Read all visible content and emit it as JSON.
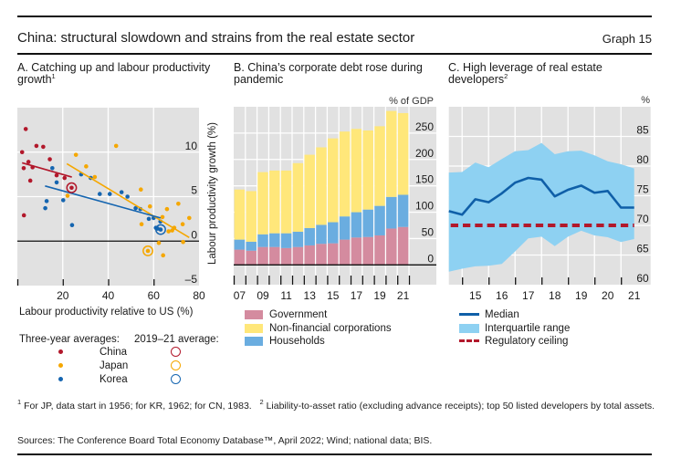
{
  "header": {
    "title": "China: structural slowdown and strains from the real estate sector",
    "graph_label": "Graph 15"
  },
  "chart_data": [
    {
      "panel": "A",
      "type": "scatter",
      "title": "A. Catching up and labour productivity growth",
      "title_footnote": "1",
      "xlabel": "Labour productivity relative to US (%)",
      "ylabel": "Labour productivity growth (%)",
      "xlim": [
        0,
        80
      ],
      "ylim": [
        -5,
        15
      ],
      "xticks": [
        20,
        40,
        60,
        80
      ],
      "xtick_labels": [
        "20",
        "40",
        "60",
        "80"
      ],
      "yticks": [
        -5,
        0,
        5,
        10
      ],
      "ytick_labels": [
        "–5",
        "0",
        "5",
        "10"
      ],
      "x_gridlines": [
        20,
        40,
        60
      ],
      "y_gridlines": [
        5,
        10
      ],
      "zero_line": 0,
      "grid": true,
      "legend": {
        "placement": "below",
        "marker_heading": "Three-year averages:",
        "highlight_heading": "2019–21 average:"
      },
      "series": [
        {
          "name": "China",
          "color": "#B2182B",
          "points": [
            [
              3.7,
              12.6
            ],
            [
              8.4,
              10.7
            ],
            [
              11.4,
              10.6
            ],
            [
              2.1,
              10.0
            ],
            [
              14.3,
              9.2
            ],
            [
              4.9,
              8.9
            ],
            [
              2.8,
              8.2
            ],
            [
              6.7,
              8.3
            ],
            [
              17.3,
              7.4
            ],
            [
              20.8,
              7.1
            ],
            [
              5.7,
              6.8
            ],
            [
              2.9,
              2.9
            ]
          ],
          "average_2019_21": [
            23.9,
            6.0
          ],
          "trend_line": [
            [
              2.1,
              8.8
            ],
            [
              24.0,
              7.2
            ]
          ]
        },
        {
          "name": "Japan",
          "color": "#F5A700",
          "points": [
            [
              25.8,
              9.7
            ],
            [
              30.3,
              8.4
            ],
            [
              34.1,
              7.2
            ],
            [
              22.1,
              5.1
            ],
            [
              43.5,
              10.7
            ],
            [
              54.4,
              5.8
            ],
            [
              58.4,
              3.9
            ],
            [
              54.7,
              1.9
            ],
            [
              63.9,
              2.7
            ],
            [
              65.9,
              3.6
            ],
            [
              70.9,
              4.2
            ],
            [
              75.7,
              2.6
            ],
            [
              72.8,
              1.9
            ],
            [
              69.1,
              1.5
            ],
            [
              68.2,
              1.2
            ],
            [
              66.6,
              1.1
            ],
            [
              73.0,
              -0.1
            ],
            [
              62.3,
              -0.2
            ],
            [
              64.2,
              -1.6
            ]
          ],
          "average_2019_21": [
            57.5,
            -1.1
          ],
          "trend_line": [
            [
              21.8,
              8.7
            ],
            [
              75.7,
              0.4
            ]
          ]
        },
        {
          "name": "Korea",
          "color": "#1565B0",
          "points": [
            [
              15.4,
              8.2
            ],
            [
              17.3,
              6.6
            ],
            [
              12.9,
              4.5
            ],
            [
              12.3,
              3.7
            ],
            [
              20.2,
              4.6
            ],
            [
              24.1,
              1.8
            ],
            [
              28.1,
              7.5
            ],
            [
              32.3,
              7.1
            ],
            [
              36.3,
              5.3
            ],
            [
              40.7,
              5.3
            ],
            [
              45.9,
              5.5
            ],
            [
              48.5,
              5.0
            ],
            [
              52.1,
              3.7
            ],
            [
              54.2,
              3.6
            ],
            [
              57.9,
              2.5
            ],
            [
              60.0,
              2.6
            ],
            [
              63.0,
              2.2
            ],
            [
              61.0,
              1.5
            ],
            [
              61.8,
              1.4
            ]
          ],
          "average_2019_21": [
            63.1,
            1.3
          ],
          "trend_line": [
            [
              12.2,
              6.2
            ],
            [
              63.1,
              2.6
            ]
          ]
        }
      ]
    },
    {
      "panel": "B",
      "type": "bar",
      "stacked": true,
      "title": "B. China’s corporate debt rose during pandemic",
      "unit_label": "% of GDP",
      "categories": [
        "07",
        "08",
        "09",
        "10",
        "11",
        "12",
        "13",
        "14",
        "15",
        "16",
        "17",
        "18",
        "19",
        "20",
        "21"
      ],
      "xtick_labels": [
        "07",
        "09",
        "11",
        "13",
        "15",
        "17",
        "19",
        "21"
      ],
      "ylim": [
        -37.5,
        300
      ],
      "yticks": [
        0,
        50,
        100,
        150,
        200,
        250
      ],
      "ytick_labels": [
        "0",
        "50",
        "100",
        "150",
        "200",
        "250"
      ],
      "grid": true,
      "series": [
        {
          "name": "Government",
          "color": "#D48B9F",
          "values": [
            29,
            27,
            34,
            34,
            32,
            34,
            37,
            40,
            41,
            48,
            52,
            53,
            56,
            69,
            72
          ]
        },
        {
          "name": "Households",
          "color": "#6AADE0",
          "values": [
            19,
            17,
            24,
            26,
            28,
            29,
            33,
            36,
            40,
            44,
            48,
            52,
            56,
            60,
            61
          ]
        },
        {
          "name": "Non-financial corporations",
          "color": "#FFE77A",
          "values": [
            95,
            96,
            118,
            119,
            119,
            130,
            139,
            147,
            159,
            161,
            158,
            150,
            151,
            163,
            155
          ]
        }
      ],
      "legend": {
        "placement": "below",
        "order": [
          "Government",
          "Non-financial corporations",
          "Households"
        ]
      }
    },
    {
      "panel": "C",
      "type": "line",
      "title": "C. High leverage of real estate developers",
      "title_footnote": "2",
      "unit_label": "%",
      "x": [
        2014.5,
        2015.0,
        2015.5,
        2016.0,
        2016.5,
        2017.0,
        2017.5,
        2018.0,
        2018.5,
        2019.0,
        2019.5,
        2020.0,
        2020.5,
        2021.0,
        2021.5
      ],
      "xlim": [
        2014.5,
        2022.12
      ],
      "xtick_years": [
        2015,
        2016,
        2017,
        2018,
        2019,
        2020,
        2021
      ],
      "xtick_labels": [
        "15",
        "16",
        "17",
        "18",
        "19",
        "20",
        "21"
      ],
      "ylim": [
        60,
        90
      ],
      "yticks": [
        60,
        65,
        70,
        75,
        80,
        85
      ],
      "ytick_labels": [
        "60",
        "65",
        "70",
        "75",
        "80",
        "85"
      ],
      "grid": true,
      "series": [
        {
          "name": "Median",
          "kind": "line",
          "color": "#0F5FA8",
          "values": [
            72.4,
            71.8,
            74.4,
            73.9,
            75.4,
            77.2,
            78.0,
            77.7,
            74.9,
            76.0,
            76.7,
            75.5,
            75.8,
            73.0,
            73.0
          ]
        },
        {
          "name": "Interquartile range",
          "kind": "band",
          "color": "#8ED1F2",
          "upper": [
            78.9,
            79.0,
            80.6,
            79.8,
            81.2,
            82.5,
            82.7,
            83.9,
            82.0,
            82.5,
            82.6,
            81.8,
            80.8,
            80.3,
            79.6
          ],
          "lower": [
            62.2,
            62.7,
            63.1,
            63.2,
            63.5,
            65.6,
            67.8,
            68.1,
            66.5,
            68.1,
            69.1,
            68.3,
            68.0,
            67.2,
            67.7
          ]
        },
        {
          "name": "Regulatory ceiling",
          "kind": "hline",
          "style": "dashed",
          "color": "#B2182B",
          "value": 70
        }
      ],
      "legend": {
        "placement": "below"
      }
    }
  ],
  "footnotes": [
    {
      "mark": "1",
      "text": "For JP, data start in 1956; for KR, 1962; for CN, 1983."
    },
    {
      "mark": "2",
      "text": "Liability-to-asset ratio (excluding advance receipts); top 50 listed developers by total assets."
    }
  ],
  "sources": "Sources: The Conference Board Total Economy Database™, April 2022; Wind; national data; BIS."
}
